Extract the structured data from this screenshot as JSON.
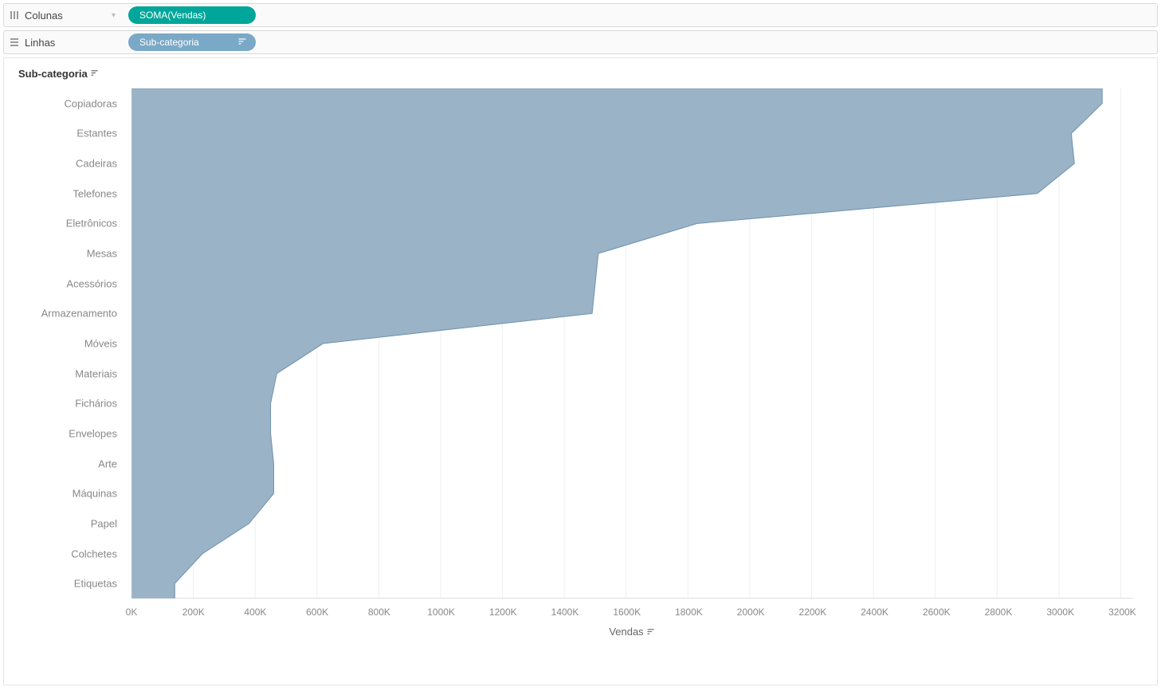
{
  "shelves": {
    "columns": {
      "label": "Colunas",
      "pill_label": "SOMA(Vendas)",
      "pill_color": "#00a69a"
    },
    "rows": {
      "label": "Linhas",
      "pill_label": "Sub-categoria",
      "pill_color": "#7aa9c7",
      "has_sort": true
    }
  },
  "chart": {
    "header_label": "Sub-categoria",
    "x_axis_title": "Vendas",
    "x_axis_has_sort": true,
    "area_fill": "#9ab3c7",
    "area_stroke": "#6f91ad",
    "grid_color": "#eceff1",
    "axis_color": "#b9c0c5",
    "background": "#ffffff",
    "label_color": "#888888",
    "label_fontsize": 13,
    "x_ticks": [
      0,
      200,
      400,
      600,
      800,
      1000,
      1200,
      1400,
      1600,
      1800,
      2000,
      2200,
      2400,
      2600,
      2800,
      3000,
      3200
    ],
    "x_tick_suffix": "K",
    "x_min": 0,
    "x_max": 3240,
    "categories": [
      {
        "label": "Copiadoras",
        "value": 3140
      },
      {
        "label": "Estantes",
        "value": 3040
      },
      {
        "label": "Cadeiras",
        "value": 3050
      },
      {
        "label": "Telefones",
        "value": 2930
      },
      {
        "label": "Eletrônicos",
        "value": 1830
      },
      {
        "label": "Mesas",
        "value": 1510
      },
      {
        "label": "Acessórios",
        "value": 1500
      },
      {
        "label": "Armazenamento",
        "value": 1490
      },
      {
        "label": "Móveis",
        "value": 620
      },
      {
        "label": "Materiais",
        "value": 470
      },
      {
        "label": "Fichários",
        "value": 450
      },
      {
        "label": "Envelopes",
        "value": 450
      },
      {
        "label": "Arte",
        "value": 460
      },
      {
        "label": "Máquinas",
        "value": 460
      },
      {
        "label": "Papel",
        "value": 380
      },
      {
        "label": "Colchetes",
        "value": 230
      },
      {
        "label": "Etiquetas",
        "value": 140
      }
    ]
  }
}
